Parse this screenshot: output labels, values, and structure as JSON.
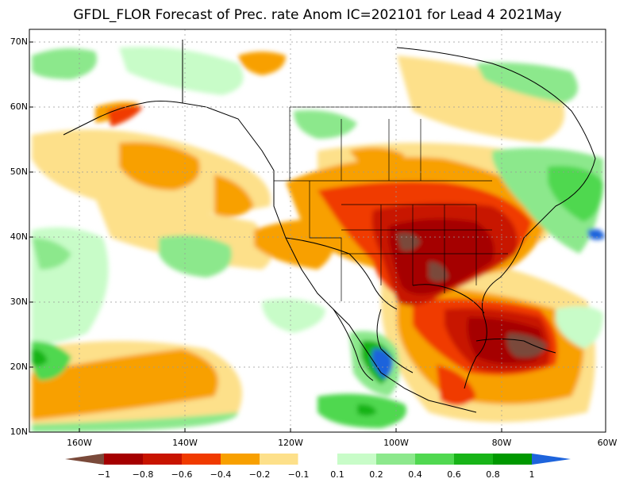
{
  "title": "GFDL_FLOR Forecast of Prec. rate Anom IC=202101 for Lead 4 2021May",
  "map": {
    "lat_labels": [
      "70N",
      "60N",
      "50N",
      "40N",
      "30N",
      "20N",
      "10N"
    ],
    "lon_labels": [
      "160W",
      "140W",
      "120W",
      "100W",
      "80W",
      "60W"
    ]
  },
  "colorbar": {
    "labels": [
      "−1",
      "−0.8",
      "−0.6",
      "−0.4",
      "−0.2",
      "−0.1",
      "0.1",
      "0.2",
      "0.4",
      "0.6",
      "0.8",
      "1"
    ],
    "colors": [
      "#7a4a3a",
      "#a50000",
      "#c81400",
      "#f03a00",
      "#f8a000",
      "#fde08a",
      "#ffffff",
      "#c8fcc8",
      "#8ce88c",
      "#50d850",
      "#18b418",
      "#009800",
      "#1e64dc"
    ]
  },
  "colors": {
    "strong_dry": "#7a4a3a",
    "dark_red": "#a50000",
    "red": "#c81400",
    "orange_red": "#f03a00",
    "orange": "#f8a000",
    "light_yellow": "#fde08a",
    "light_green": "#c8fcc8",
    "green": "#8ce88c",
    "mid_green": "#50d850",
    "dark_green": "#18b418",
    "blue": "#1e64dc"
  }
}
